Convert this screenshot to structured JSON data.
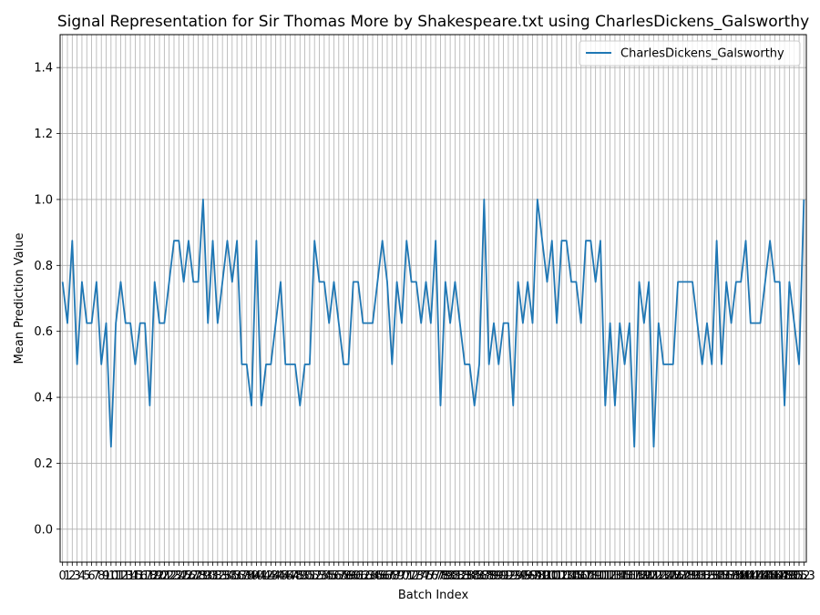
{
  "chart_data": {
    "type": "line",
    "title": "Signal Representation for Sir Thomas More by Shakespeare.txt using CharlesDickens_Galsworthy",
    "xlabel": "Batch Index",
    "ylabel": "Mean Prediction Value",
    "ylim": [
      -0.1,
      1.5
    ],
    "yticks": [
      "0.0",
      "0.2",
      "0.4",
      "0.6",
      "0.8",
      "1.0",
      "1.2",
      "1.4"
    ],
    "xlim": [
      -0.5,
      153.5
    ],
    "grid": true,
    "legend_position": "top-right",
    "colors": {
      "series": "#1f77b4",
      "grid": "#b0b0b0"
    },
    "series": [
      {
        "name": "CharlesDickens_Galsworthy",
        "values": [
          0.75,
          0.625,
          0.875,
          0.5,
          0.75,
          0.625,
          0.625,
          0.75,
          0.5,
          0.625,
          0.25,
          0.625,
          0.75,
          0.625,
          0.625,
          0.5,
          0.625,
          0.625,
          0.375,
          0.75,
          0.625,
          0.625,
          0.75,
          0.875,
          0.875,
          0.75,
          0.875,
          0.75,
          0.75,
          1.0,
          0.625,
          0.875,
          0.625,
          0.75,
          0.875,
          0.75,
          0.875,
          0.5,
          0.5,
          0.375,
          0.875,
          0.375,
          0.5,
          0.5,
          0.625,
          0.75,
          0.5,
          0.5,
          0.5,
          0.375,
          0.5,
          0.5,
          0.875,
          0.75,
          0.75,
          0.625,
          0.75,
          0.625,
          0.5,
          0.5,
          0.75,
          0.75,
          0.625,
          0.625,
          0.625,
          0.75,
          0.875,
          0.75,
          0.5,
          0.75,
          0.625,
          0.875,
          0.75,
          0.75,
          0.625,
          0.75,
          0.625,
          0.875,
          0.375,
          0.75,
          0.625,
          0.75,
          0.625,
          0.5,
          0.5,
          0.375,
          0.5,
          1.0,
          0.5,
          0.625,
          0.5,
          0.625,
          0.625,
          0.375,
          0.75,
          0.625,
          0.75,
          0.625,
          1.0,
          0.875,
          0.75,
          0.875,
          0.625,
          0.875,
          0.875,
          0.75,
          0.75,
          0.625,
          0.875,
          0.875,
          0.75,
          0.875,
          0.375,
          0.625,
          0.375,
          0.625,
          0.5,
          0.625,
          0.25,
          0.75,
          0.625,
          0.75,
          0.25,
          0.625,
          0.5,
          0.5,
          0.5,
          0.75,
          0.75,
          0.75,
          0.75,
          0.625,
          0.5,
          0.625,
          0.5,
          0.875,
          0.5,
          0.75,
          0.625,
          0.75,
          0.75,
          0.875,
          0.625,
          0.625,
          0.625,
          0.75,
          0.875,
          0.75,
          0.75,
          0.375,
          0.75,
          0.625,
          0.5,
          1.0
        ]
      }
    ]
  }
}
